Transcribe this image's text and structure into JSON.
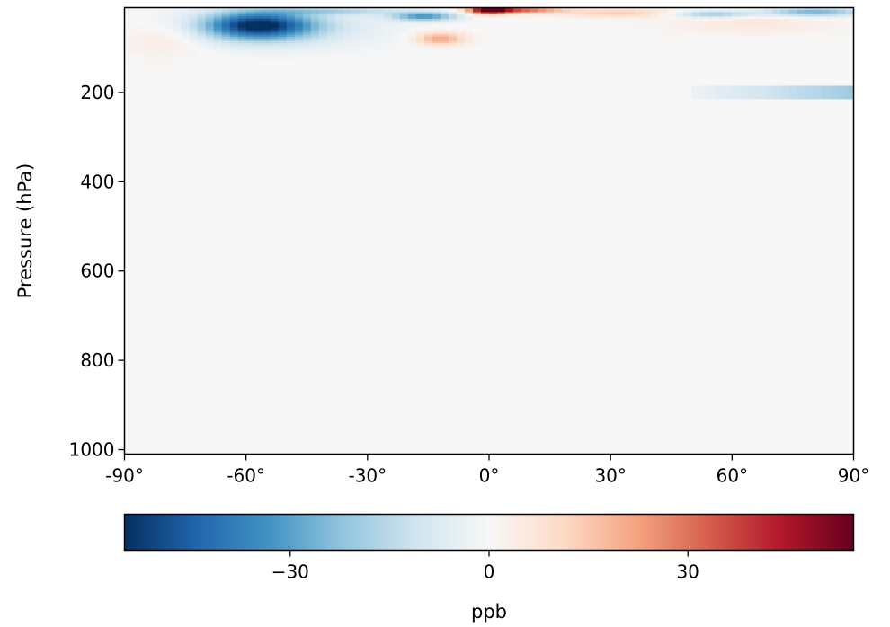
{
  "chart_data": {
    "type": "heatmap",
    "title": "",
    "xlabel": "",
    "ylabel": "Pressure (hPa)",
    "x_range": [
      -90,
      90
    ],
    "x_ticks": [
      {
        "value": -90,
        "label": "-90°"
      },
      {
        "value": -60,
        "label": "-60°"
      },
      {
        "value": -30,
        "label": "-30°"
      },
      {
        "value": 0,
        "label": "0°"
      },
      {
        "value": 30,
        "label": "30°"
      },
      {
        "value": 60,
        "label": "60°"
      },
      {
        "value": 90,
        "label": "90°"
      }
    ],
    "y_range": [
      10,
      1010
    ],
    "y_inverted": true,
    "y_ticks": [
      {
        "value": 200,
        "label": "200"
      },
      {
        "value": 400,
        "label": "400"
      },
      {
        "value": 600,
        "label": "600"
      },
      {
        "value": 800,
        "label": "800"
      },
      {
        "value": 1000,
        "label": "1000"
      }
    ],
    "colormap": "RdBu_r",
    "colormap_stops": [
      "#053061",
      "#2166ac",
      "#4393c3",
      "#92c5de",
      "#d1e5f0",
      "#f7f7f7",
      "#fddbc7",
      "#f4a582",
      "#d6604d",
      "#b2182b",
      "#67001f"
    ],
    "color_range": [
      -55,
      55
    ],
    "colorbar": {
      "label": "ppb",
      "ticks": [
        {
          "value": -30,
          "label": "−30"
        },
        {
          "value": 0,
          "label": "0"
        },
        {
          "value": 30,
          "label": "30"
        }
      ]
    },
    "features": [
      {
        "lat_center": -57,
        "p_center": 50,
        "lat_halfwidth": 13,
        "p_halfwidth": 30,
        "value": -48
      },
      {
        "lat_center": -52,
        "p_center": 55,
        "lat_halfwidth": 24,
        "p_halfwidth": 45,
        "value": -12
      },
      {
        "lat_center": 0,
        "p_center": 15,
        "lat_halfwidth": 5,
        "p_halfwidth": 10,
        "value": 52
      },
      {
        "lat_center": 8,
        "p_center": 15,
        "lat_halfwidth": 10,
        "p_halfwidth": 8,
        "value": 32
      },
      {
        "lat_center": -16,
        "p_center": 30,
        "lat_halfwidth": 8,
        "p_halfwidth": 10,
        "value": -32
      },
      {
        "lat_center": -12,
        "p_center": 80,
        "lat_halfwidth": 6,
        "p_halfwidth": 15,
        "value": 22
      },
      {
        "lat_center": -38,
        "p_center": 18,
        "lat_halfwidth": 18,
        "p_halfwidth": 8,
        "value": -14
      },
      {
        "lat_center": 32,
        "p_center": 22,
        "lat_halfwidth": 14,
        "p_halfwidth": 10,
        "value": 14
      },
      {
        "lat_center": 65,
        "p_center": 45,
        "lat_halfwidth": 20,
        "p_halfwidth": 25,
        "value": 6
      },
      {
        "lat_center": 80,
        "p_center": 20,
        "lat_halfwidth": 12,
        "p_halfwidth": 10,
        "value": -28
      },
      {
        "lat_center": 55,
        "p_center": 25,
        "lat_halfwidth": 10,
        "p_halfwidth": 8,
        "value": -22
      },
      {
        "lat_center": -80,
        "p_center": 80,
        "lat_halfwidth": 10,
        "p_halfwidth": 40,
        "value": 6
      }
    ],
    "bands": [
      {
        "lat_start": 50,
        "lat_end": 90,
        "p_start": 185,
        "p_end": 215,
        "value_start": -3,
        "value_end": -20
      }
    ]
  }
}
